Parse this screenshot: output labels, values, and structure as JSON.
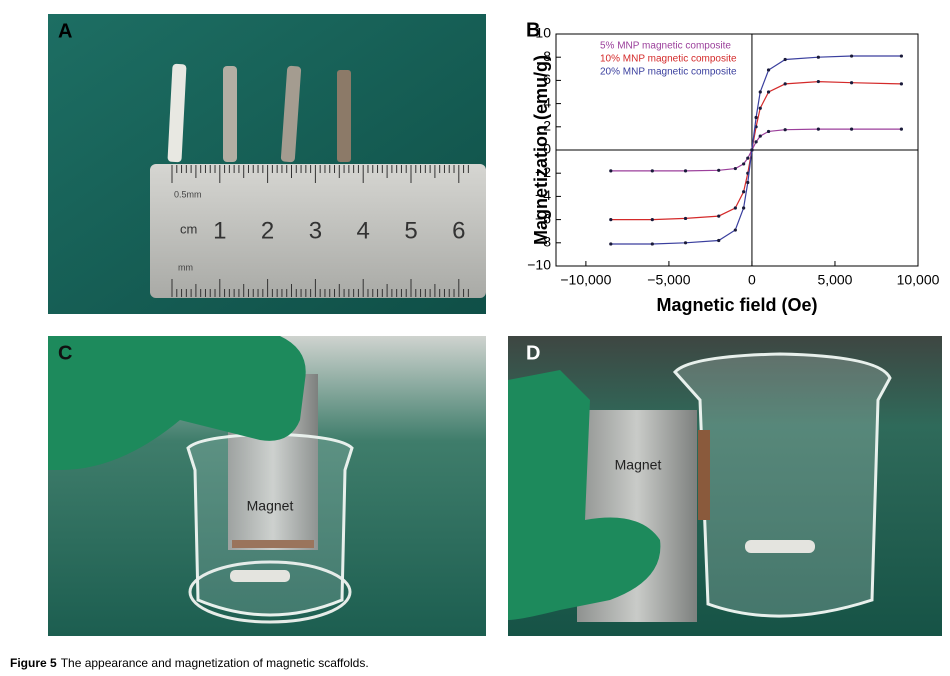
{
  "panels": [
    {
      "label": "A",
      "ruler": {
        "top_unit": "0.5mm",
        "unit": "cm",
        "numbers": [
          "1",
          "2",
          "3",
          "4",
          "5",
          "6"
        ],
        "bottom_unit": "mm"
      }
    },
    {
      "label": "B"
    },
    {
      "label": "C",
      "text": "Magnet"
    },
    {
      "label": "D",
      "text": "Magnet"
    }
  ],
  "chart_data": {
    "type": "line",
    "x_label": "Magnetic field (Oe)",
    "y_label": "Magnetization (emu/g)",
    "x": [
      -8500,
      -6000,
      -4000,
      -2000,
      -1000,
      -500,
      -250,
      0,
      250,
      500,
      1000,
      2000,
      4000,
      6000,
      9000
    ],
    "series": [
      {
        "name": "5% MNP magnetic composite",
        "color": "#9b3f9b",
        "values": [
          -1.8,
          -1.8,
          -1.8,
          -1.75,
          -1.6,
          -1.2,
          -0.7,
          0,
          0.7,
          1.2,
          1.6,
          1.75,
          1.8,
          1.8,
          1.8
        ]
      },
      {
        "name": "10% MNP magnetic composite",
        "color": "#d42a2a",
        "values": [
          -6.0,
          -6.0,
          -5.9,
          -5.7,
          -5.0,
          -3.6,
          -2.0,
          0,
          2.0,
          3.6,
          5.0,
          5.7,
          5.9,
          5.8,
          5.7
        ]
      },
      {
        "name": "20% MNP magnetic composite",
        "color": "#3a3f9e",
        "values": [
          -8.1,
          -8.1,
          -8.0,
          -7.8,
          -6.9,
          -5.0,
          -2.8,
          0,
          2.8,
          5.0,
          6.9,
          7.8,
          8.0,
          8.1,
          8.1
        ]
      }
    ],
    "xlim": [
      -11800,
      10000
    ],
    "ylim": [
      -10,
      10
    ],
    "xticks": [
      {
        "value": -10000,
        "label": "−10,000"
      },
      {
        "value": -5000,
        "label": "−5,000"
      },
      0,
      {
        "value": 5000,
        "label": "5,000"
      },
      {
        "value": 10000,
        "label": "10,000"
      }
    ],
    "yticks": [
      {
        "value": -10,
        "label": "−10"
      },
      {
        "value": -8,
        "label": "−8"
      },
      {
        "value": -6,
        "label": "−6"
      },
      {
        "value": -4,
        "label": "−4"
      },
      {
        "value": -2,
        "label": "−2"
      },
      0,
      2,
      4,
      6,
      8,
      10
    ],
    "legend": "upper left"
  },
  "caption": {
    "label": "Figure 5",
    "text": "The appearance and magnetization of magnetic scaffolds."
  }
}
